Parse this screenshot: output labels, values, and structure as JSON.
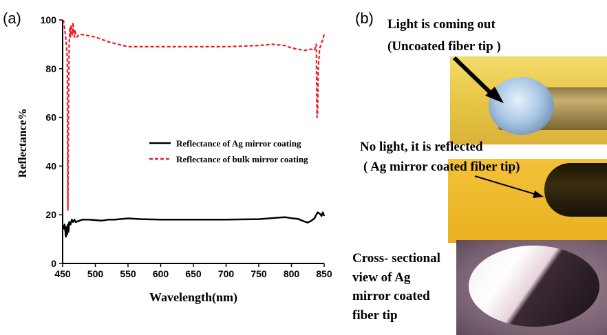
{
  "panel_a": {
    "label": "(a)"
  },
  "panel_b": {
    "label": "(b)",
    "caption1_line1": "Light is coming out",
    "caption1_line2": "(Uncoated fiber tip )",
    "caption2_line1": "No light, it is reflected",
    "caption2_line2": "( Ag mirror coated fiber tip)",
    "caption3_line1": "Cross- sectional",
    "caption3_line2": "view of Ag",
    "caption3_line3": "mirror coated",
    "caption3_line4": "fiber tip"
  },
  "colors": {
    "ag_series": "#000000",
    "bulk_series": "#ee1c24",
    "photo1_bg": "#e8c84a",
    "photo2_bg": "#efb825",
    "photo3_bg": "#8a6e80"
  },
  "chart_data": {
    "type": "line",
    "xlabel": "Wavelength(nm)",
    "ylabel": "Reflectance%",
    "xlim": [
      450,
      850
    ],
    "ylim": [
      0,
      100
    ],
    "xticks": [
      450,
      500,
      550,
      600,
      650,
      700,
      750,
      800,
      850
    ],
    "yticks": [
      0,
      20,
      40,
      60,
      80,
      100
    ],
    "legend_position": "center-right",
    "series": [
      {
        "name": "Reflectance of Ag mirror coating",
        "style": "solid",
        "color": "#000000",
        "x": [
          451,
          453,
          455,
          456,
          457,
          458,
          459,
          460,
          462,
          464,
          466,
          468,
          470,
          475,
          480,
          490,
          500,
          510,
          520,
          530,
          550,
          570,
          600,
          650,
          700,
          750,
          780,
          790,
          800,
          810,
          820,
          825,
          830,
          835,
          838,
          840,
          843,
          846,
          848,
          850
        ],
        "y": [
          14,
          16,
          11,
          15,
          12,
          16,
          13,
          17,
          16,
          18,
          17,
          18,
          17,
          17.5,
          18,
          18,
          17.8,
          17.6,
          18,
          18,
          18.5,
          18.2,
          18,
          18,
          18,
          18.2,
          18.8,
          19,
          18.6,
          18.3,
          17.2,
          16.8,
          17.5,
          18.5,
          20,
          21,
          20.5,
          19.5,
          21,
          19.5
        ]
      },
      {
        "name": "Reflectance of bulk mirror coating",
        "style": "dashed",
        "color": "#ee1c24",
        "x": [
          451,
          453,
          455,
          457,
          458,
          459,
          460,
          461,
          462,
          463,
          464,
          465,
          466,
          467,
          468,
          469,
          470,
          472,
          475,
          480,
          490,
          500,
          520,
          550,
          580,
          600,
          650,
          700,
          750,
          770,
          790,
          800,
          810,
          820,
          830,
          835,
          838,
          839,
          840,
          841,
          843,
          845,
          848,
          850
        ],
        "y": [
          100,
          97,
          92,
          85,
          22,
          60,
          90,
          97,
          93,
          98,
          96,
          94,
          99,
          95,
          93,
          96,
          94,
          93,
          94,
          94,
          93.5,
          93,
          91,
          89,
          89,
          89,
          89,
          89,
          89.5,
          90,
          89.5,
          88.5,
          88,
          87.5,
          88,
          87.5,
          90,
          60,
          62,
          80,
          88,
          90,
          92,
          94
        ]
      }
    ]
  }
}
